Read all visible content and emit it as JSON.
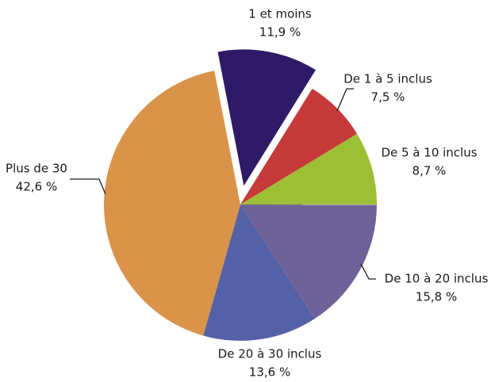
{
  "chart_data": {
    "type": "pie",
    "categories": [
      "1 et moins",
      "De 1 à 5 inclus",
      "De 5 à 10 inclus",
      "De 10 à 20 inclus",
      "De 20 à 30 inclus",
      "Plus de 30"
    ],
    "values": [
      11.9,
      7.5,
      8.7,
      15.8,
      13.6,
      42.6
    ],
    "value_labels": [
      "11,9 %",
      "7,5 %",
      "8,7 %",
      "15,8 %",
      "13,6 %",
      "42,6 %"
    ],
    "colors": [
      "#2e1a66",
      "#c73a3a",
      "#9dbf35",
      "#6e6299",
      "#5561a6",
      "#d9944a"
    ],
    "exploded": [
      0
    ]
  }
}
